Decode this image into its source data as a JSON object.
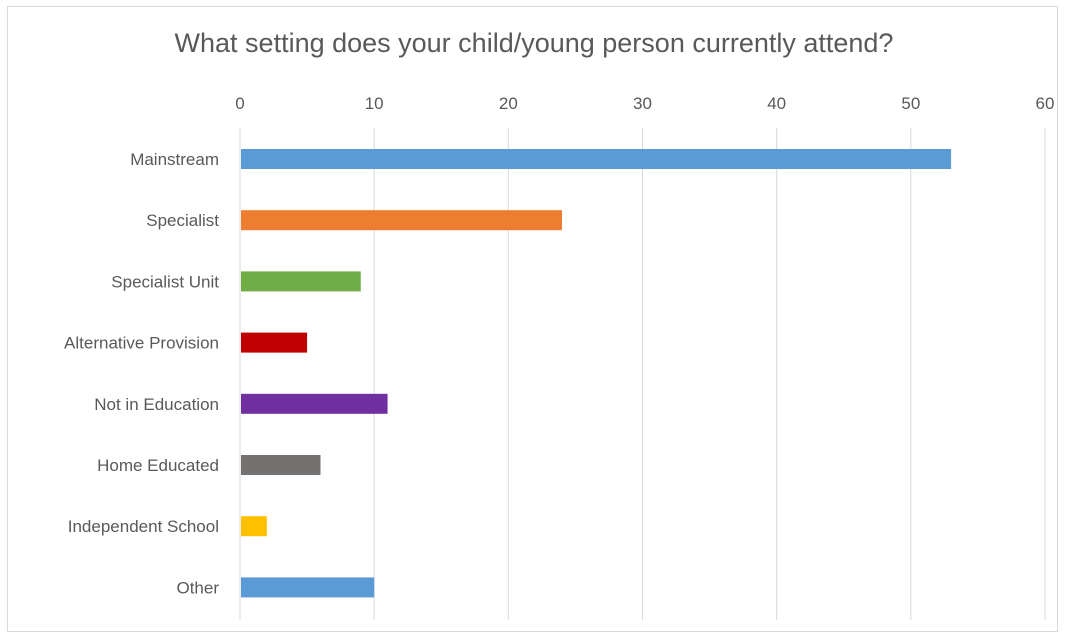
{
  "chart_data": {
    "type": "bar",
    "orientation": "horizontal",
    "title": "What setting does your child/young person currently attend?",
    "xlabel": "",
    "ylabel": "",
    "xlim": [
      0,
      60
    ],
    "x_ticks": [
      "0",
      "10",
      "20",
      "30",
      "40",
      "50",
      "60"
    ],
    "x_axis_position": "top",
    "grid": true,
    "categories": [
      "Mainstream",
      "Specialist",
      "Specialist Unit",
      "Alternative Provision",
      "Not in Education",
      "Home Educated",
      "Independent School",
      "Other"
    ],
    "values": [
      53,
      24,
      9,
      5,
      11,
      6,
      2,
      10
    ],
    "colors": [
      "#5b9bd5",
      "#ed7d31",
      "#70ad47",
      "#c00000",
      "#7030a0",
      "#767171",
      "#ffc000",
      "#5b9bd5"
    ]
  }
}
